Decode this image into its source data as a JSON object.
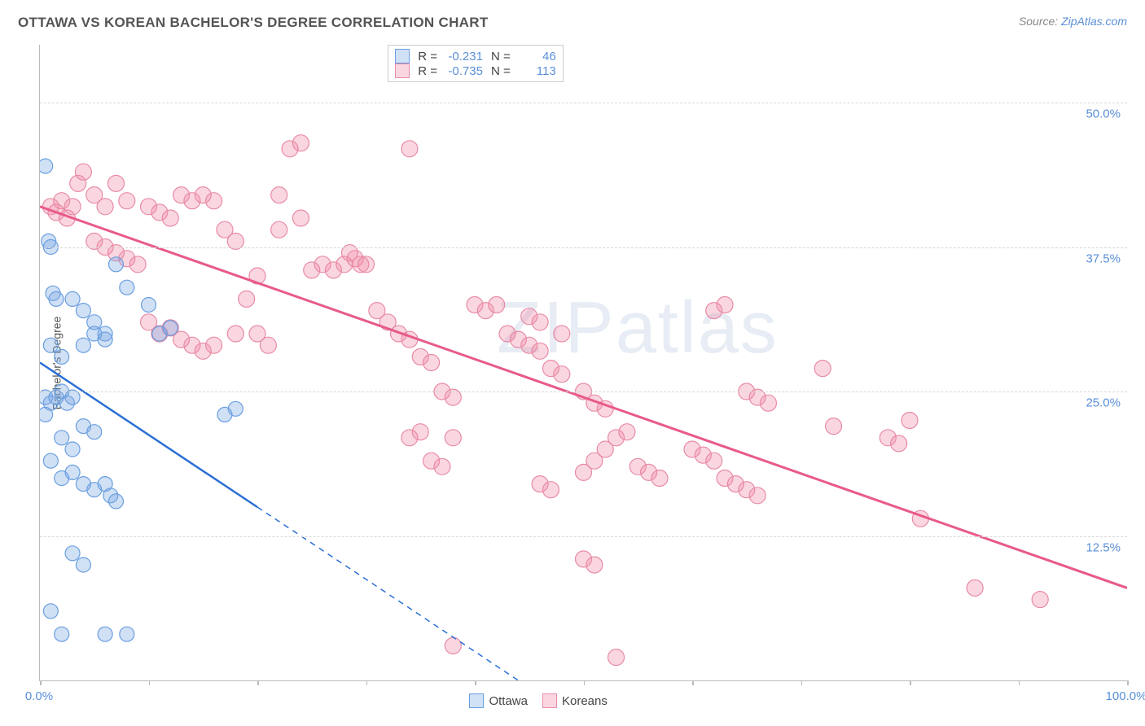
{
  "title": "OTTAWA VS KOREAN BACHELOR'S DEGREE CORRELATION CHART",
  "source_label": "Source:",
  "source_name": "ZipAtlas.com",
  "y_axis_label": "Bachelor's Degree",
  "watermark": "ZIPatlas",
  "chart": {
    "type": "scatter",
    "xlim": [
      0,
      100
    ],
    "ylim": [
      0,
      55
    ],
    "x_ticks": [
      0,
      10,
      20,
      30,
      40,
      50,
      60,
      70,
      80,
      90,
      100
    ],
    "x_tick_labels": {
      "0": "0.0%",
      "100": "100.0%"
    },
    "y_gridlines": [
      12.5,
      25.0,
      37.5,
      50.0
    ],
    "y_tick_labels": [
      "12.5%",
      "25.0%",
      "37.5%",
      "50.0%"
    ],
    "background_color": "#ffffff",
    "grid_color": "#d8d8d8",
    "axis_color": "#bbbbbb"
  },
  "series": {
    "ottawa": {
      "label": "Ottawa",
      "color_fill": "rgba(120,165,225,0.35)",
      "color_stroke": "#6a9fe0",
      "marker_radius": 9,
      "R": "-0.231",
      "N": "46",
      "trend": {
        "solid": [
          [
            0,
            27.5
          ],
          [
            20,
            15
          ]
        ],
        "dashed": [
          [
            20,
            15
          ],
          [
            44,
            0
          ]
        ],
        "color": "#2a6fd6",
        "width": 2.5
      },
      "points": [
        [
          0.5,
          44.5
        ],
        [
          0.8,
          38
        ],
        [
          1,
          37.5
        ],
        [
          1.2,
          33.5
        ],
        [
          1.5,
          33
        ],
        [
          0.5,
          24.5
        ],
        [
          1,
          24
        ],
        [
          1.5,
          24.5
        ],
        [
          2,
          25
        ],
        [
          0.5,
          23
        ],
        [
          2.5,
          24
        ],
        [
          3,
          24.5
        ],
        [
          1,
          19
        ],
        [
          2,
          21
        ],
        [
          3,
          20
        ],
        [
          4,
          22
        ],
        [
          5,
          21.5
        ],
        [
          2,
          17.5
        ],
        [
          3,
          18
        ],
        [
          4,
          17
        ],
        [
          5,
          16.5
        ],
        [
          6,
          17
        ],
        [
          6.5,
          16
        ],
        [
          7,
          15.5
        ],
        [
          3,
          11
        ],
        [
          4,
          10
        ],
        [
          1,
          6
        ],
        [
          2,
          4
        ],
        [
          6,
          4
        ],
        [
          8,
          4
        ],
        [
          4,
          29
        ],
        [
          5,
          30
        ],
        [
          6,
          29.5
        ],
        [
          7,
          36
        ],
        [
          8,
          34
        ],
        [
          3,
          33
        ],
        [
          4,
          32
        ],
        [
          5,
          31
        ],
        [
          6,
          30
        ],
        [
          1,
          29
        ],
        [
          2,
          28
        ],
        [
          10,
          32.5
        ],
        [
          11,
          30
        ],
        [
          12,
          30.5
        ],
        [
          17,
          23
        ],
        [
          18,
          23.5
        ]
      ]
    },
    "koreans": {
      "label": "Koreans",
      "color_fill": "rgba(240,140,165,0.35)",
      "color_stroke": "#e88aa5",
      "marker_radius": 10,
      "R": "-0.735",
      "N": "113",
      "trend": {
        "solid": [
          [
            0,
            41
          ],
          [
            100,
            8
          ]
        ],
        "color": "#e85a8a",
        "width": 3
      },
      "points": [
        [
          1,
          41
        ],
        [
          2,
          41.5
        ],
        [
          3,
          41
        ],
        [
          1.5,
          40.5
        ],
        [
          2.5,
          40
        ],
        [
          3.5,
          43
        ],
        [
          4,
          44
        ],
        [
          5,
          42
        ],
        [
          6,
          41
        ],
        [
          7,
          43
        ],
        [
          8,
          41.5
        ],
        [
          5,
          38
        ],
        [
          6,
          37.5
        ],
        [
          7,
          37
        ],
        [
          8,
          36.5
        ],
        [
          9,
          36
        ],
        [
          10,
          41
        ],
        [
          11,
          40.5
        ],
        [
          12,
          40
        ],
        [
          13,
          42
        ],
        [
          14,
          41.5
        ],
        [
          15,
          42
        ],
        [
          16,
          41.5
        ],
        [
          17,
          39
        ],
        [
          18,
          38
        ],
        [
          10,
          31
        ],
        [
          11,
          30
        ],
        [
          12,
          30.5
        ],
        [
          13,
          29.5
        ],
        [
          14,
          29
        ],
        [
          15,
          28.5
        ],
        [
          16,
          29
        ],
        [
          18,
          30
        ],
        [
          19,
          33
        ],
        [
          20,
          30
        ],
        [
          21,
          29
        ],
        [
          22,
          39
        ],
        [
          23,
          46
        ],
        [
          24,
          46.5
        ],
        [
          34,
          46
        ],
        [
          20,
          35
        ],
        [
          22,
          42
        ],
        [
          24,
          40
        ],
        [
          25,
          35.5
        ],
        [
          26,
          36
        ],
        [
          27,
          35.5
        ],
        [
          28,
          36
        ],
        [
          28.5,
          37
        ],
        [
          29,
          36.5
        ],
        [
          29.5,
          36
        ],
        [
          30,
          36
        ],
        [
          31,
          32
        ],
        [
          32,
          31
        ],
        [
          33,
          30
        ],
        [
          34,
          29.5
        ],
        [
          35,
          28
        ],
        [
          36,
          27.5
        ],
        [
          37,
          25
        ],
        [
          38,
          24.5
        ],
        [
          34,
          21
        ],
        [
          35,
          21.5
        ],
        [
          36,
          19
        ],
        [
          37,
          18.5
        ],
        [
          38,
          21
        ],
        [
          40,
          32.5
        ],
        [
          41,
          32
        ],
        [
          42,
          32.5
        ],
        [
          43,
          30
        ],
        [
          44,
          29.5
        ],
        [
          45,
          29
        ],
        [
          46,
          28.5
        ],
        [
          47,
          27
        ],
        [
          48,
          26.5
        ],
        [
          38,
          3
        ],
        [
          50,
          18
        ],
        [
          51,
          19
        ],
        [
          52,
          20
        ],
        [
          53,
          21
        ],
        [
          54,
          21.5
        ],
        [
          50,
          10.5
        ],
        [
          51,
          10
        ],
        [
          46,
          17
        ],
        [
          47,
          16.5
        ],
        [
          55,
          18.5
        ],
        [
          56,
          18
        ],
        [
          57,
          17.5
        ],
        [
          62,
          32
        ],
        [
          63,
          32.5
        ],
        [
          60,
          20
        ],
        [
          61,
          19.5
        ],
        [
          62,
          19
        ],
        [
          63,
          17.5
        ],
        [
          64,
          17
        ],
        [
          65,
          16.5
        ],
        [
          66,
          16
        ],
        [
          72,
          27
        ],
        [
          73,
          22
        ],
        [
          78,
          21
        ],
        [
          79,
          20.5
        ],
        [
          80,
          22.5
        ],
        [
          81,
          14
        ],
        [
          65,
          25
        ],
        [
          66,
          24.5
        ],
        [
          67,
          24
        ],
        [
          45,
          31.5
        ],
        [
          46,
          31
        ],
        [
          48,
          30
        ],
        [
          86,
          8
        ],
        [
          50,
          25
        ],
        [
          51,
          24
        ],
        [
          52,
          23.5
        ],
        [
          53,
          2
        ],
        [
          92,
          7
        ]
      ]
    }
  },
  "stats_box": {
    "R_label": "R =",
    "N_label": "N ="
  },
  "legend_bottom": {
    "ottawa": "Ottawa",
    "koreans": "Koreans"
  }
}
